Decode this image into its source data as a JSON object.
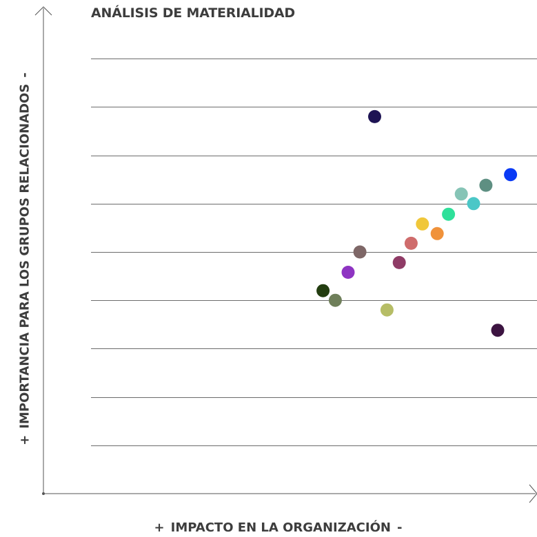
{
  "chart_data": {
    "type": "scatter",
    "title": "ANÁLISIS DE MATERIALIDAD",
    "xlabel": {
      "plus": "+",
      "text": "IMPACTO EN LA ORGANIZACIÓN",
      "minus": "-"
    },
    "ylabel": {
      "plus": "+",
      "text": "IMPORTANCIA PARA LOS GRUPOS RELACIONADOS",
      "minus": "-"
    },
    "xlim": [
      0,
      10
    ],
    "ylim": [
      0,
      9
    ],
    "grid": true,
    "points": [
      {
        "x": 5.68,
        "y": 4.2,
        "color": "#233d10"
      },
      {
        "x": 5.93,
        "y": 4.0,
        "color": "#6f7f5a"
      },
      {
        "x": 6.19,
        "y": 4.58,
        "color": "#8e34c2"
      },
      {
        "x": 6.43,
        "y": 5.0,
        "color": "#7e6767"
      },
      {
        "x": 6.73,
        "y": 7.8,
        "color": "#1e1454"
      },
      {
        "x": 6.98,
        "y": 3.8,
        "color": "#b6bd66"
      },
      {
        "x": 7.23,
        "y": 4.78,
        "color": "#8f3b66"
      },
      {
        "x": 7.47,
        "y": 5.18,
        "color": "#cf6c6c"
      },
      {
        "x": 7.7,
        "y": 5.58,
        "color": "#f0c73a"
      },
      {
        "x": 8.0,
        "y": 5.38,
        "color": "#f0923a"
      },
      {
        "x": 8.23,
        "y": 5.78,
        "color": "#2fe09a"
      },
      {
        "x": 8.49,
        "y": 6.2,
        "color": "#86c4b6"
      },
      {
        "x": 8.74,
        "y": 6.0,
        "color": "#4bc7c7"
      },
      {
        "x": 8.99,
        "y": 6.38,
        "color": "#5e8f82"
      },
      {
        "x": 9.23,
        "y": 3.38,
        "color": "#3c1441"
      },
      {
        "x": 9.49,
        "y": 6.6,
        "color": "#0a3af5"
      }
    ]
  }
}
